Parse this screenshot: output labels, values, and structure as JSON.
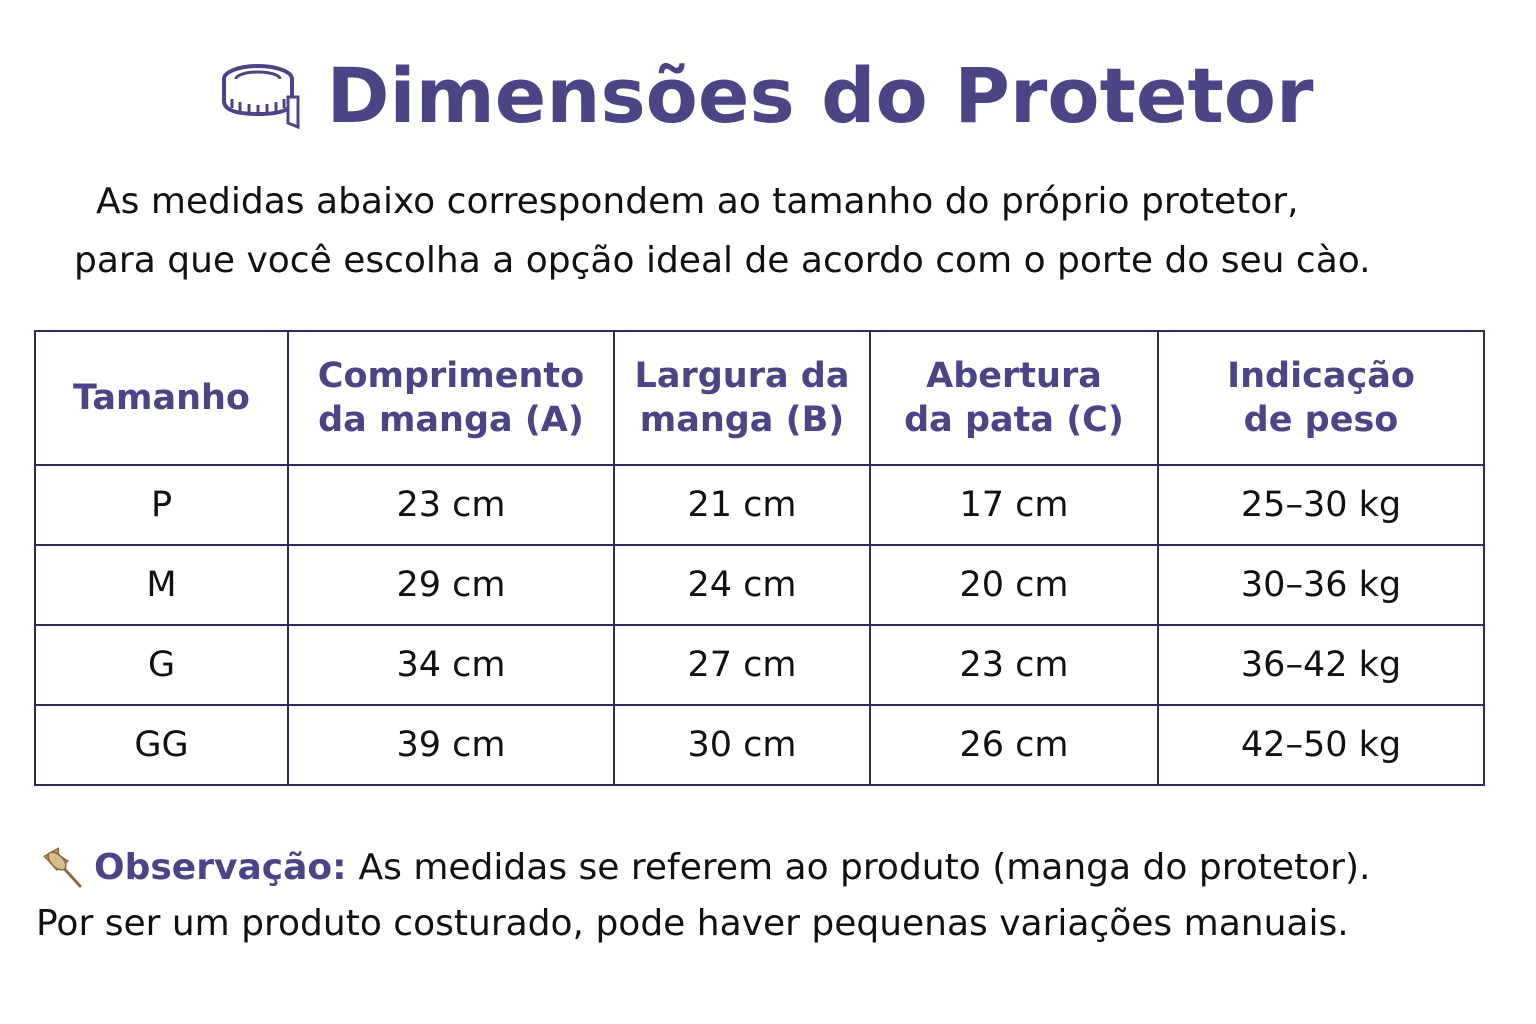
{
  "title": "Dimensões do Protetor",
  "subtitle": {
    "line1": "As medidas abaixo correspondem ao tamanho do próprio protetor,",
    "line2": "para que você escolha a opção ideal de acordo com o porte do seu cào."
  },
  "table": {
    "headers": [
      {
        "line1": "Tamanho",
        "line2": ""
      },
      {
        "line1": "Comprimento",
        "line2": "da manga (A)"
      },
      {
        "line1": "Largura da",
        "line2": "manga (B)"
      },
      {
        "line1": "Abertura",
        "line2": "da pata (C)"
      },
      {
        "line1": "Indicação",
        "line2": "de peso"
      }
    ],
    "rows": [
      [
        "P",
        "23 cm",
        "21 cm",
        "17 cm",
        "25–30 kg"
      ],
      [
        "M",
        "29 cm",
        "24 cm",
        "20 cm",
        "30–36 kg"
      ],
      [
        "G",
        "34 cm",
        "27 cm",
        "23 cm",
        "36–42 kg"
      ],
      [
        "GG",
        "39 cm",
        "30 cm",
        "26 cm",
        "42–50 kg"
      ]
    ]
  },
  "note": {
    "label": "Observação",
    "colon": ":",
    "text1": "As medidas se referem ao produto (manga do protetor).",
    "text2": "Por ser um produto costurado, pode haver pequenas variações manuais."
  },
  "icons": {
    "title_icon": "measuring-tape-icon",
    "note_icon": "pushpin-icon"
  },
  "colors": {
    "accent": "#4b4585",
    "border": "#2f2a5c",
    "text": "#111111"
  }
}
